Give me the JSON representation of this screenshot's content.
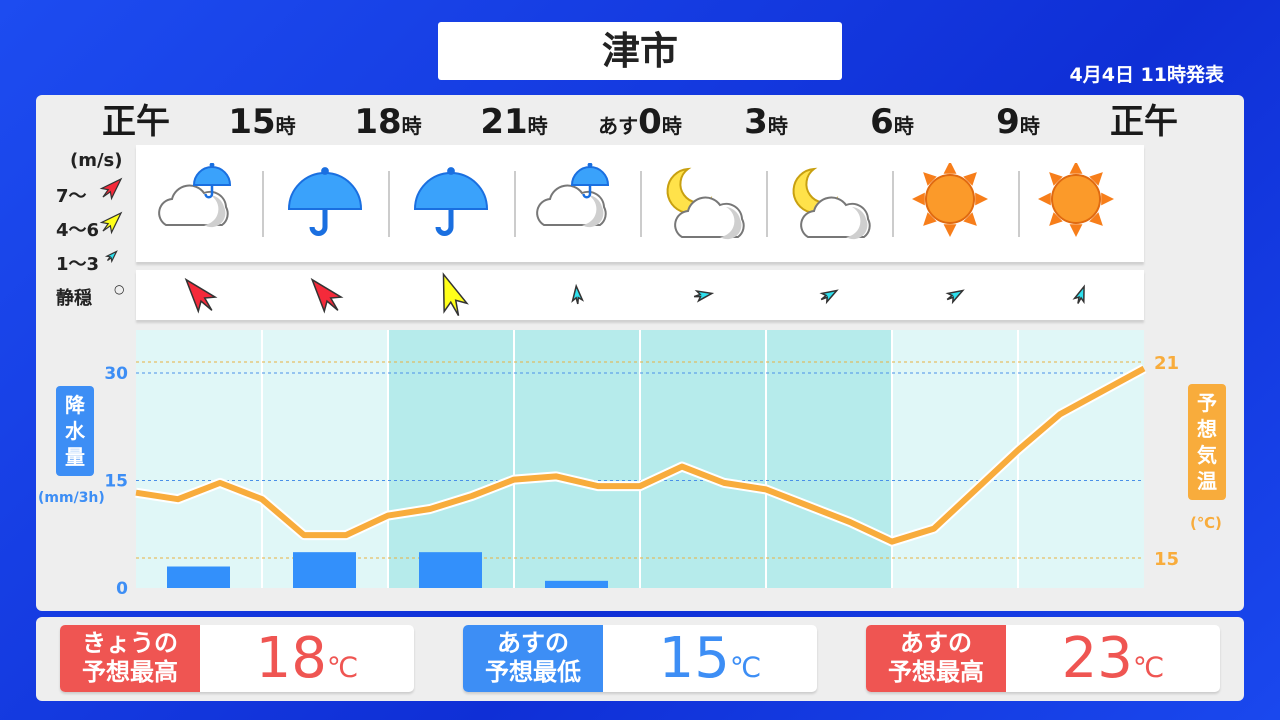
{
  "title": "津市",
  "issued": "4月4日  11時発表",
  "times": [
    {
      "main": "正午",
      "suffix": ""
    },
    {
      "main": "15",
      "suffix": "時"
    },
    {
      "main": "18",
      "suffix": "時"
    },
    {
      "main": "21",
      "suffix": "時"
    },
    {
      "main": "0",
      "suffix": "時",
      "prefix": "あす"
    },
    {
      "main": "3",
      "suffix": "時"
    },
    {
      "main": "6",
      "suffix": "時"
    },
    {
      "main": "9",
      "suffix": "時"
    },
    {
      "main": "正午",
      "suffix": ""
    }
  ],
  "weather_icons": [
    "cloudy-with-rain",
    "rain-umbrella",
    "rain-umbrella",
    "cloudy-with-rain",
    "moon-cloudy",
    "moon-cloudy",
    "sunny",
    "sunny"
  ],
  "wind_legend": {
    "unit": "(m/s)",
    "levels": [
      {
        "label": "7～",
        "color": "#f42a3a"
      },
      {
        "label": "4～6",
        "color": "#ffff1a"
      },
      {
        "label": "1～3",
        "color": "#2ee0ee"
      },
      {
        "label": "静穏",
        "symbol": "○"
      }
    ]
  },
  "wind": [
    {
      "level": "7～",
      "direction_deg": -40
    },
    {
      "level": "7～",
      "direction_deg": -40
    },
    {
      "level": "4～6",
      "direction_deg": -20
    },
    {
      "level": "1～3",
      "direction_deg": -5
    },
    {
      "level": "1～3",
      "direction_deg": 80
    },
    {
      "level": "1～3",
      "direction_deg": 60
    },
    {
      "level": "1～3",
      "direction_deg": 60
    },
    {
      "level": "1～3",
      "direction_deg": 20
    }
  ],
  "chart_data": {
    "type": "bar+line",
    "precip": {
      "label": "降水量",
      "unit": "(mm/3h)",
      "ylim": [
        0,
        36
      ],
      "ticks": [
        0,
        15,
        30
      ],
      "values": [
        3,
        5,
        5,
        1,
        0,
        0,
        0,
        0
      ],
      "color": "#3390fb"
    },
    "temp": {
      "label": "予想気温",
      "unit": "(℃)",
      "ticks": [
        15,
        21
      ],
      "ylim": [
        14,
        22.1
      ],
      "values": [
        17.0,
        16.8,
        17.3,
        16.8,
        15.7,
        15.7,
        16.3,
        16.5,
        16.9,
        17.4,
        17.5,
        17.2,
        17.2,
        17.8,
        17.3,
        17.1,
        16.6,
        16.1,
        15.5,
        15.9,
        17.1,
        18.3,
        19.4,
        20.1,
        20.8
      ],
      "color": "#f8ac3c"
    },
    "night_columns": [
      2,
      3,
      4,
      5
    ]
  },
  "summary": [
    {
      "label1": "きょうの",
      "label2": "予想最高",
      "value": "18",
      "unit": "℃",
      "color": "#ef5552"
    },
    {
      "label1": "あすの",
      "label2": "予想最低",
      "value": "15",
      "unit": "℃",
      "color": "#3d8ef5"
    },
    {
      "label1": "あすの",
      "label2": "予想最高",
      "value": "23",
      "unit": "℃",
      "color": "#ef5552"
    }
  ]
}
